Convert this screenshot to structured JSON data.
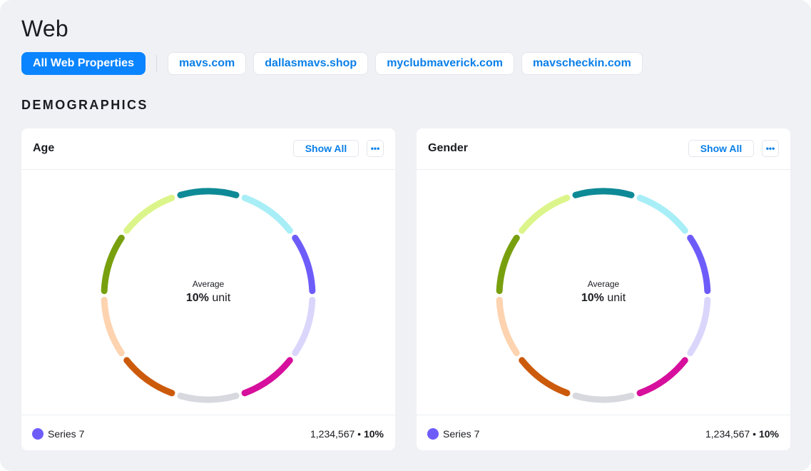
{
  "page": {
    "title": "Web"
  },
  "tabs": [
    {
      "label": "All Web Properties",
      "active": true
    },
    {
      "label": "mavs.com",
      "active": false
    },
    {
      "label": "dallasmavs.shop",
      "active": false
    },
    {
      "label": "myclubmaverick.com",
      "active": false
    },
    {
      "label": "mavscheckin.com",
      "active": false
    }
  ],
  "section": {
    "title": "DEMOGRAPHICS"
  },
  "cards": [
    {
      "title": "Age",
      "show_all_label": "Show All",
      "more_icon": "more-horizontal-icon",
      "center": {
        "label": "Average",
        "value": "10%",
        "unit": "unit"
      },
      "legend": {
        "series": "Series 7",
        "count": "1,234,567",
        "separator": "•",
        "percent": "10%",
        "color": "#6e5cfa"
      }
    },
    {
      "title": "Gender",
      "show_all_label": "Show All",
      "more_icon": "more-horizontal-icon",
      "center": {
        "label": "Average",
        "value": "10%",
        "unit": "unit"
      },
      "legend": {
        "series": "Series 7",
        "count": "1,234,567",
        "separator": "•",
        "percent": "10%",
        "color": "#6e5cfa"
      }
    }
  ],
  "donut_colors": [
    "#0e8a96",
    "#a8eef7",
    "#6e5cfa",
    "#dad6fb",
    "#d60f9c",
    "#d7d9df",
    "#cc5a0b",
    "#fdd3b0",
    "#78a00e",
    "#dcf58a"
  ],
  "colors": {
    "accent": "#0a84ff",
    "link": "#0a7fe8"
  }
}
